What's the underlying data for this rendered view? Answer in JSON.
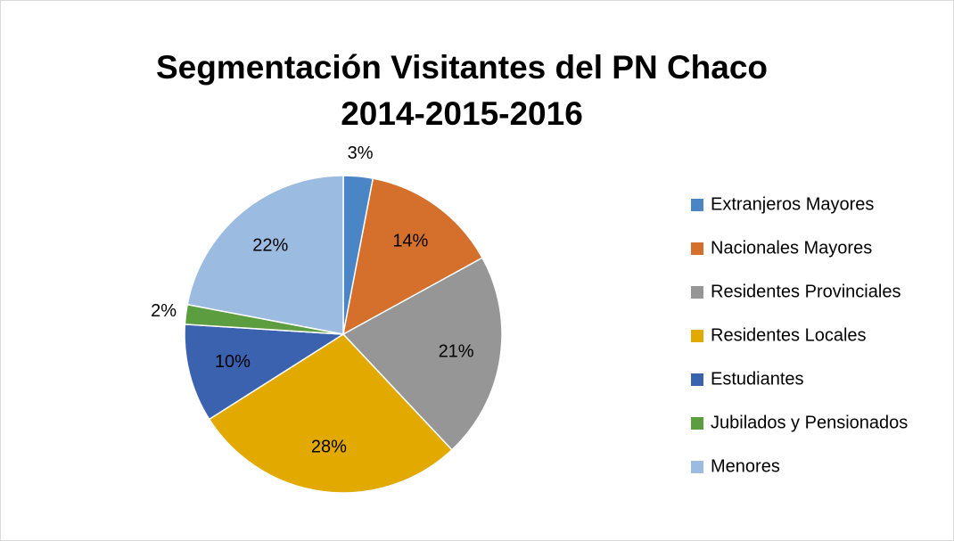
{
  "chart_data": {
    "type": "pie",
    "title": [
      "Segmentación Visitantes del PN Chaco",
      "2014-2015-2016"
    ],
    "categories": [
      "Extranjeros Mayores",
      "Nacionales Mayores",
      "Residentes Provinciales",
      "Residentes Locales",
      "Estudiantes",
      "Jubilados y Pensionados",
      "Menores"
    ],
    "values": [
      3,
      14,
      21,
      28,
      10,
      2,
      22
    ],
    "value_labels": [
      "3%",
      "14%",
      "21%",
      "28%",
      "10%",
      "2%",
      "22%"
    ],
    "colors": [
      "#4A86C5",
      "#D46F2C",
      "#969696",
      "#E2A900",
      "#3A62AF",
      "#5C9E3F",
      "#9BBBE0"
    ],
    "legend": "right"
  }
}
